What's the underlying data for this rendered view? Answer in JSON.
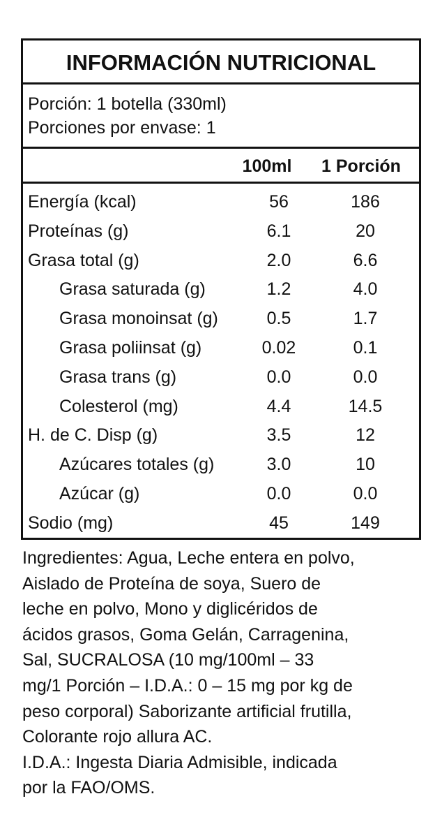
{
  "header": {
    "title": "INFORMACIÓN NUTRICIONAL"
  },
  "serving": {
    "size": "Porción: 1 botella (330ml)",
    "servings": "Porciones por envase: 1"
  },
  "table": {
    "columns": [
      "100ml",
      "1 Porción"
    ],
    "rows": [
      {
        "name": "Energía (kcal)",
        "indent": false,
        "cells": [
          "56",
          "186"
        ]
      },
      {
        "name": "Proteínas (g)",
        "indent": false,
        "cells": [
          "6.1",
          "20"
        ]
      },
      {
        "name": "Grasa total (g)",
        "indent": false,
        "cells": [
          "2.0",
          "6.6"
        ]
      },
      {
        "name": "Grasa saturada (g)",
        "indent": true,
        "cells": [
          "1.2",
          "4.0"
        ]
      },
      {
        "name": "Grasa monoinsat (g)",
        "indent": true,
        "cells": [
          "0.5",
          "1.7"
        ]
      },
      {
        "name": "Grasa poliinsat (g)",
        "indent": true,
        "cells": [
          "0.02",
          "0.1"
        ]
      },
      {
        "name": "Grasa trans (g)",
        "indent": true,
        "cells": [
          "0.0",
          "0.0"
        ]
      },
      {
        "name": "Colesterol (mg)",
        "indent": true,
        "cells": [
          "4.4",
          "14.5"
        ]
      },
      {
        "name": "H. de C. Disp (g)",
        "indent": false,
        "cells": [
          "3.5",
          "12"
        ]
      },
      {
        "name": "Azúcares totales (g)",
        "indent": true,
        "cells": [
          "3.0",
          "10"
        ]
      },
      {
        "name": "Azúcar (g)",
        "indent": true,
        "cells": [
          "0.0",
          "0.0"
        ]
      },
      {
        "name": "Sodio (mg)",
        "indent": false,
        "cells": [
          "45",
          "149"
        ]
      }
    ]
  },
  "ingredients": {
    "lines": [
      "Ingredientes: Agua, Leche entera en polvo,",
      "Aislado de Proteína de soya, Suero de",
      "leche en polvo, Mono y diglicéridos de",
      "ácidos grasos, Goma Gelán, Carragenina,",
      "Sal, SUCRALOSA (10 mg/100ml – 33",
      "mg/1 Porción – I.D.A.: 0 – 15 mg por kg de",
      "peso corporal) Saborizante artificial frutilla,",
      "Colorante rojo allura AC.",
      "I.D.A.: Ingesta Diaria Admisible, indicada",
      "por la FAO/OMS."
    ]
  }
}
